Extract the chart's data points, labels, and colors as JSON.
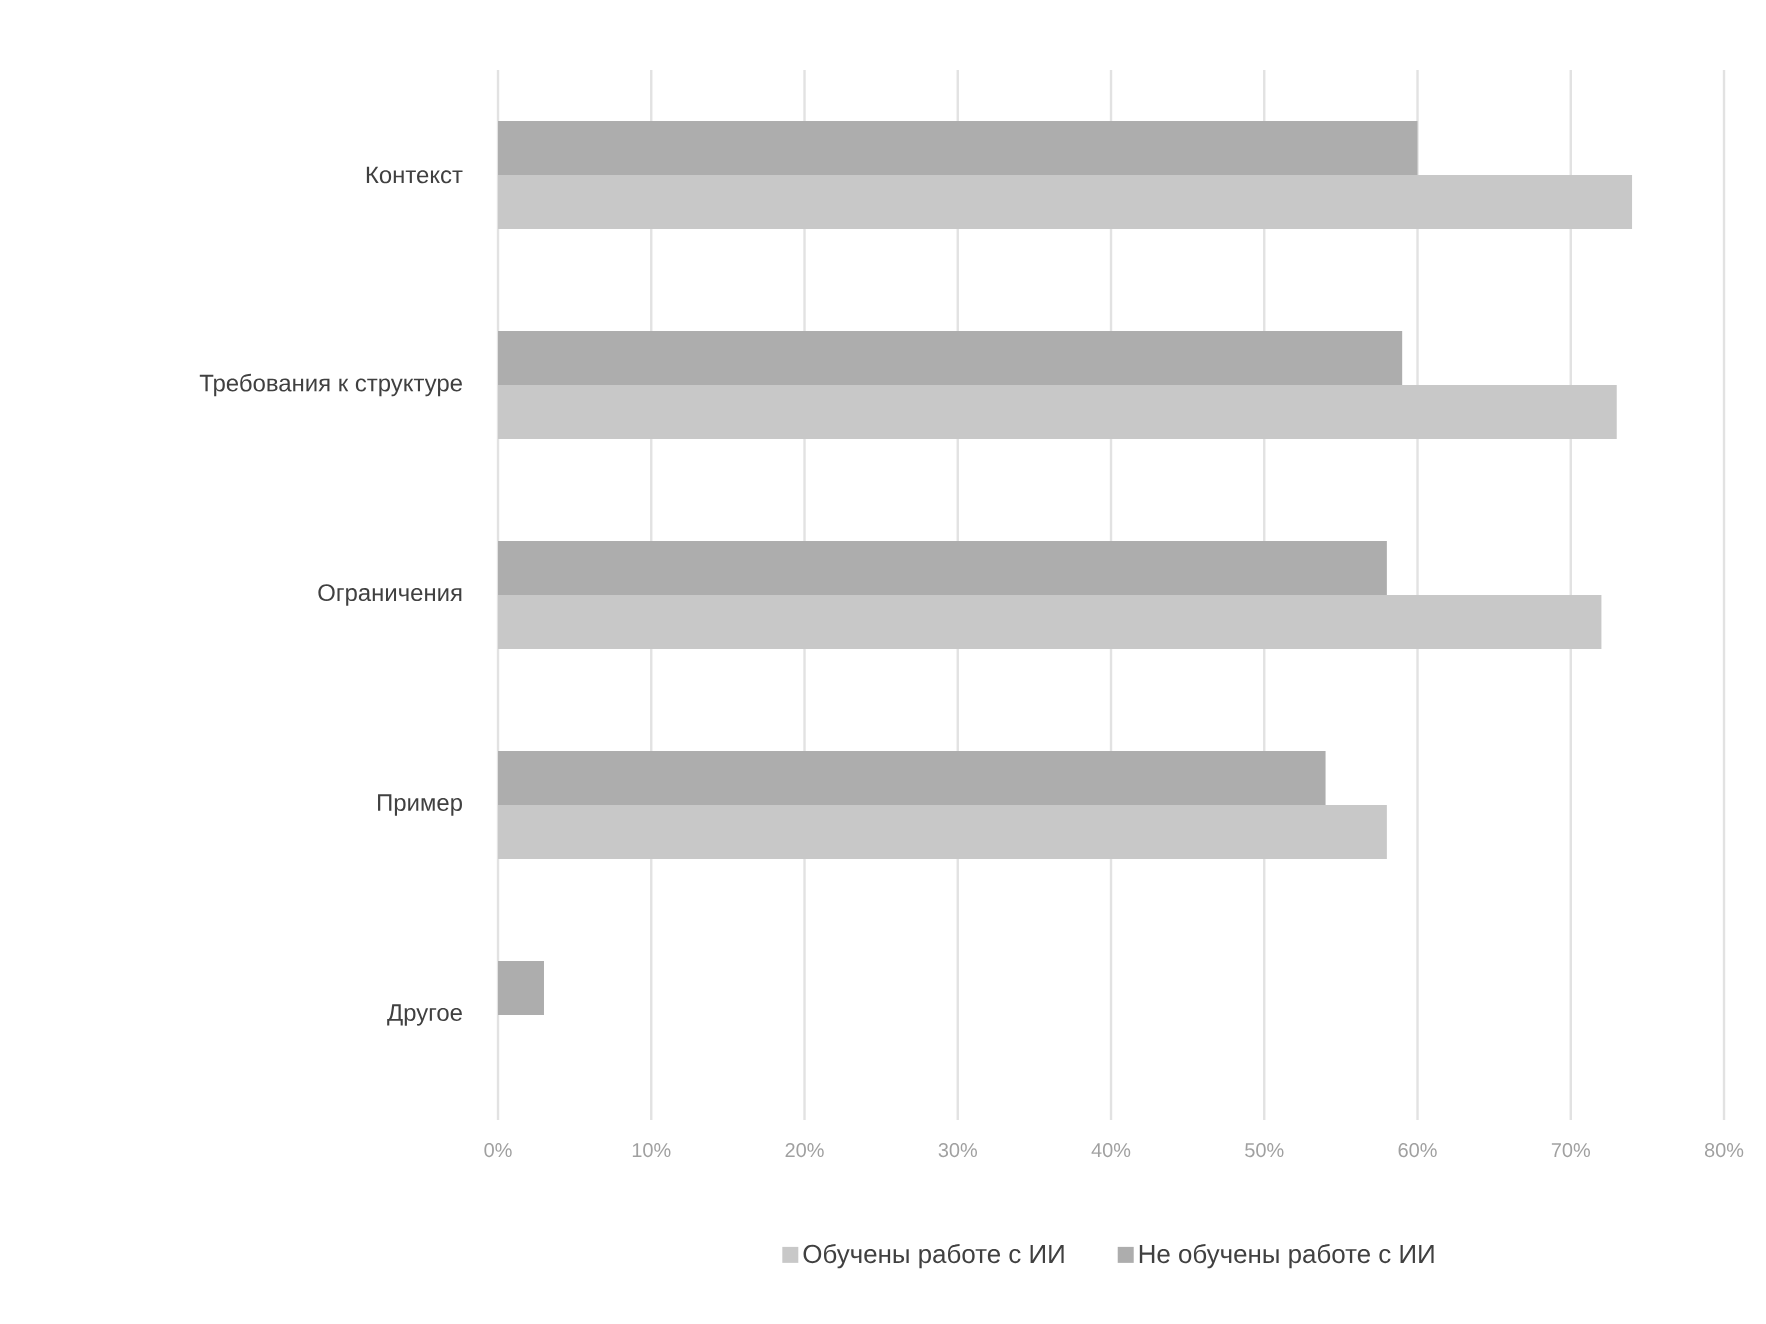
{
  "chart_data": {
    "type": "bar",
    "orientation": "horizontal",
    "categories": [
      "Контекст",
      "Требования к структуре",
      "Ограничения",
      "Пример",
      "Другое"
    ],
    "series": [
      {
        "name": "Обучены работе с ИИ",
        "color": "#c8c8c8",
        "values": [
          74,
          73,
          72,
          58,
          0
        ]
      },
      {
        "name": "Не обучены работе с ИИ",
        "color": "#adadad",
        "values": [
          60,
          59,
          58,
          54,
          3
        ]
      }
    ],
    "xlim": [
      0,
      80
    ],
    "xticks": [
      {
        "value": 0,
        "label": "0%"
      },
      {
        "value": 10,
        "label": "10%"
      },
      {
        "value": 20,
        "label": "20%"
      },
      {
        "value": 30,
        "label": "30%"
      },
      {
        "value": 40,
        "label": "40%"
      },
      {
        "value": 50,
        "label": "50%"
      },
      {
        "value": 60,
        "label": "60%"
      },
      {
        "value": 70,
        "label": "70%"
      },
      {
        "value": 80,
        "label": "80%"
      }
    ],
    "grid": "x",
    "legend": "bottom"
  }
}
